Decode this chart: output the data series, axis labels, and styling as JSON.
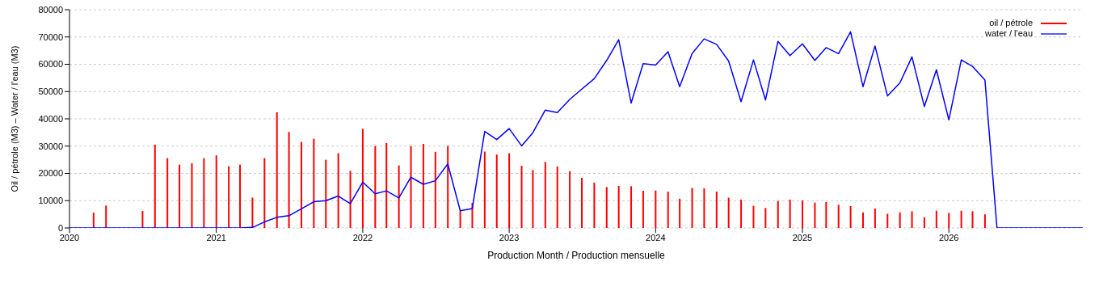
{
  "chart_data": {
    "type": "bar",
    "xlabel": "Production Month / Production mensuelle",
    "ylabel": "Oil / pétrole (M3) – Water / l'eau (M3)",
    "x": [
      "2020-01",
      "2020-02",
      "2020-03",
      "2020-04",
      "2020-05",
      "2020-06",
      "2020-07",
      "2020-08",
      "2020-09",
      "2020-10",
      "2020-11",
      "2020-12",
      "2021-01",
      "2021-02",
      "2021-03",
      "2021-04",
      "2021-05",
      "2021-06",
      "2021-07",
      "2021-08",
      "2021-09",
      "2021-10",
      "2021-11",
      "2021-12",
      "2022-01",
      "2022-02",
      "2022-03",
      "2022-04",
      "2022-05",
      "2022-06",
      "2022-07",
      "2022-08",
      "2022-09",
      "2022-10",
      "2022-11",
      "2022-12",
      "2023-01",
      "2023-02",
      "2023-03",
      "2023-04",
      "2023-05",
      "2023-06",
      "2023-07",
      "2023-08",
      "2023-09",
      "2023-10",
      "2023-11",
      "2023-12",
      "2024-01",
      "2024-02",
      "2024-03",
      "2024-04",
      "2024-05",
      "2024-06",
      "2024-07",
      "2024-08",
      "2024-09",
      "2024-10",
      "2024-11",
      "2024-12",
      "2025-01",
      "2025-02",
      "2025-03",
      "2025-04",
      "2025-05",
      "2025-06",
      "2025-07",
      "2025-08",
      "2025-09",
      "2025-10",
      "2025-11",
      "2025-12",
      "2026-01",
      "2026-02",
      "2026-03",
      "2026-04",
      "2026-05",
      "2026-06",
      "2026-07",
      "2026-08",
      "2026-09",
      "2026-10",
      "2026-11",
      "2026-12"
    ],
    "series": [
      {
        "name": "oil / pétrole",
        "color": "#ff0000",
        "values": [
          0,
          0,
          5600,
          8200,
          0,
          0,
          6200,
          30500,
          25600,
          23200,
          23700,
          25600,
          26600,
          22600,
          23200,
          11100,
          25600,
          42400,
          35200,
          31500,
          32700,
          25000,
          27400,
          20900,
          36300,
          30000,
          31100,
          22900,
          30000,
          30800,
          27900,
          30100,
          6300,
          9200,
          28000,
          26900,
          27400,
          22800,
          21200,
          24200,
          22500,
          20800,
          18400,
          16600,
          15000,
          15400,
          15300,
          13600,
          13700,
          13300,
          10700,
          14700,
          14500,
          13300,
          11100,
          10400,
          8100,
          7300,
          9900,
          10400,
          10100,
          9300,
          9500,
          8500,
          8000,
          5700,
          7100,
          5200,
          5700,
          6100,
          3900,
          6300,
          5500,
          6300,
          6100,
          5000,
          null,
          null,
          null,
          null,
          null,
          null,
          null,
          null
        ]
      },
      {
        "name": "water / l'eau",
        "type": "line",
        "color": "#0000ff",
        "values": [
          0,
          0,
          0,
          0,
          0,
          0,
          0,
          0,
          0,
          0,
          0,
          0,
          0,
          0,
          0,
          200,
          2200,
          3900,
          4500,
          7000,
          9600,
          10000,
          11700,
          8900,
          16800,
          12500,
          13600,
          11000,
          18600,
          16000,
          17300,
          23500,
          6300,
          7100,
          35400,
          32400,
          36400,
          30100,
          34900,
          43200,
          42300,
          47100,
          50900,
          54700,
          61400,
          69000,
          45800,
          60200,
          59700,
          64600,
          51800,
          63900,
          69300,
          67300,
          61200,
          46300,
          61600,
          46900,
          68400,
          63200,
          67500,
          61400,
          66100,
          63900,
          71900,
          51800,
          66700,
          48400,
          53200,
          62700,
          44500,
          58000,
          39600,
          61600,
          59200,
          54200,
          0,
          0,
          0,
          0,
          0,
          0,
          0,
          0
        ]
      }
    ],
    "xlim": [
      "2020-01",
      "2026-12"
    ],
    "xticks": [
      "2020",
      "2021",
      "2022",
      "2023",
      "2024",
      "2025",
      "2026"
    ],
    "ylim": [
      0,
      80000
    ],
    "yticks": [
      0,
      10000,
      20000,
      30000,
      40000,
      50000,
      60000,
      70000,
      80000
    ],
    "grid": "y",
    "legend": "top right"
  }
}
